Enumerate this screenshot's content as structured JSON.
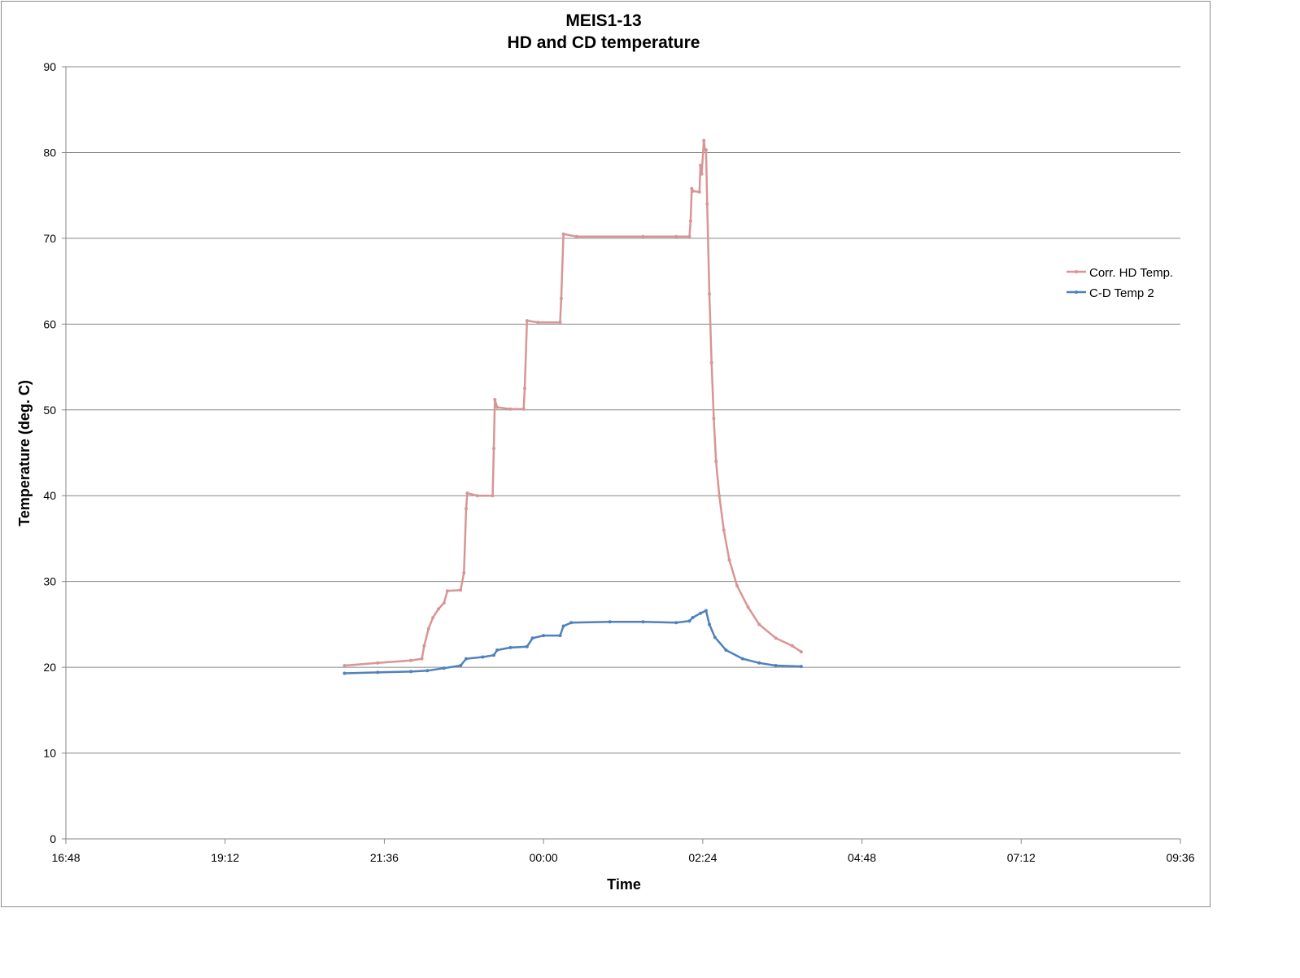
{
  "chart_data": {
    "type": "line",
    "title": [
      "MEIS1-13",
      "HD and CD temperature"
    ],
    "xlabel": "Time",
    "ylabel": "Temperature (deg. C)",
    "xlim": [
      "16:48",
      "09:36"
    ],
    "ylim": [
      0,
      90
    ],
    "x_tick_labels": [
      "16:48",
      "19:12",
      "21:36",
      "00:00",
      "02:24",
      "04:48",
      "07:12",
      "09:36"
    ],
    "y_tick_labels": [
      "0",
      "10",
      "20",
      "30",
      "40",
      "50",
      "60",
      "70",
      "80",
      "90"
    ],
    "grid": "horizontal",
    "legend_position": "right",
    "series": [
      {
        "name": "Corr. HD Temp.",
        "color": "#d99594",
        "points": [
          [
            "21:00",
            20.2
          ],
          [
            "21:30",
            20.5
          ],
          [
            "22:00",
            20.8
          ],
          [
            "22:10",
            21.0
          ],
          [
            "22:12",
            22.5
          ],
          [
            "22:16",
            24.5
          ],
          [
            "22:20",
            25.8
          ],
          [
            "22:25",
            26.8
          ],
          [
            "22:30",
            27.5
          ],
          [
            "22:33",
            28.9
          ],
          [
            "22:45",
            29.0
          ],
          [
            "22:48",
            31.0
          ],
          [
            "22:50",
            38.5
          ],
          [
            "22:51",
            40.3
          ],
          [
            "23:00",
            40.0
          ],
          [
            "23:14",
            40.0
          ],
          [
            "23:15",
            45.5
          ],
          [
            "23:16",
            51.2
          ],
          [
            "23:18",
            50.3
          ],
          [
            "23:30",
            50.1
          ],
          [
            "23:42",
            50.1
          ],
          [
            "23:43",
            52.5
          ],
          [
            "23:45",
            60.4
          ],
          [
            "23:55",
            60.2
          ],
          [
            "00:15",
            60.2
          ],
          [
            "00:16",
            63.0
          ],
          [
            "00:18",
            70.5
          ],
          [
            "00:30",
            70.2
          ],
          [
            "01:30",
            70.2
          ],
          [
            "02:00",
            70.2
          ],
          [
            "02:12",
            70.2
          ],
          [
            "02:13",
            72.0
          ],
          [
            "02:14",
            75.8
          ],
          [
            "02:15",
            75.5
          ],
          [
            "02:21",
            75.4
          ],
          [
            "02:22",
            78.5
          ],
          [
            "02:23",
            77.5
          ],
          [
            "02:25",
            81.4
          ],
          [
            "02:26",
            80.3
          ],
          [
            "02:27",
            80.3
          ],
          [
            "02:28",
            74.0
          ],
          [
            "02:30",
            63.5
          ],
          [
            "02:32",
            55.5
          ],
          [
            "02:34",
            49.0
          ],
          [
            "02:36",
            44.0
          ],
          [
            "02:39",
            40.0
          ],
          [
            "02:43",
            36.0
          ],
          [
            "02:48",
            32.5
          ],
          [
            "02:55",
            29.5
          ],
          [
            "03:05",
            27.0
          ],
          [
            "03:15",
            25.0
          ],
          [
            "03:30",
            23.4
          ],
          [
            "03:45",
            22.5
          ],
          [
            "03:53",
            21.8
          ]
        ]
      },
      {
        "name": "C-D Temp 2",
        "color": "#4f81bd",
        "points": [
          [
            "21:00",
            19.3
          ],
          [
            "21:30",
            19.4
          ],
          [
            "22:00",
            19.5
          ],
          [
            "22:15",
            19.6
          ],
          [
            "22:30",
            19.9
          ],
          [
            "22:45",
            20.2
          ],
          [
            "22:50",
            21.0
          ],
          [
            "23:05",
            21.2
          ],
          [
            "23:15",
            21.4
          ],
          [
            "23:18",
            22.0
          ],
          [
            "23:30",
            22.3
          ],
          [
            "23:45",
            22.4
          ],
          [
            "23:50",
            23.4
          ],
          [
            "00:00",
            23.7
          ],
          [
            "00:15",
            23.7
          ],
          [
            "00:18",
            24.8
          ],
          [
            "00:25",
            25.2
          ],
          [
            "01:00",
            25.3
          ],
          [
            "01:30",
            25.3
          ],
          [
            "02:00",
            25.2
          ],
          [
            "02:12",
            25.4
          ],
          [
            "02:15",
            25.8
          ],
          [
            "02:22",
            26.3
          ],
          [
            "02:27",
            26.6
          ],
          [
            "02:30",
            25.0
          ],
          [
            "02:35",
            23.5
          ],
          [
            "02:45",
            22.0
          ],
          [
            "03:00",
            21.0
          ],
          [
            "03:15",
            20.5
          ],
          [
            "03:30",
            20.2
          ],
          [
            "03:53",
            20.1
          ]
        ]
      }
    ]
  }
}
